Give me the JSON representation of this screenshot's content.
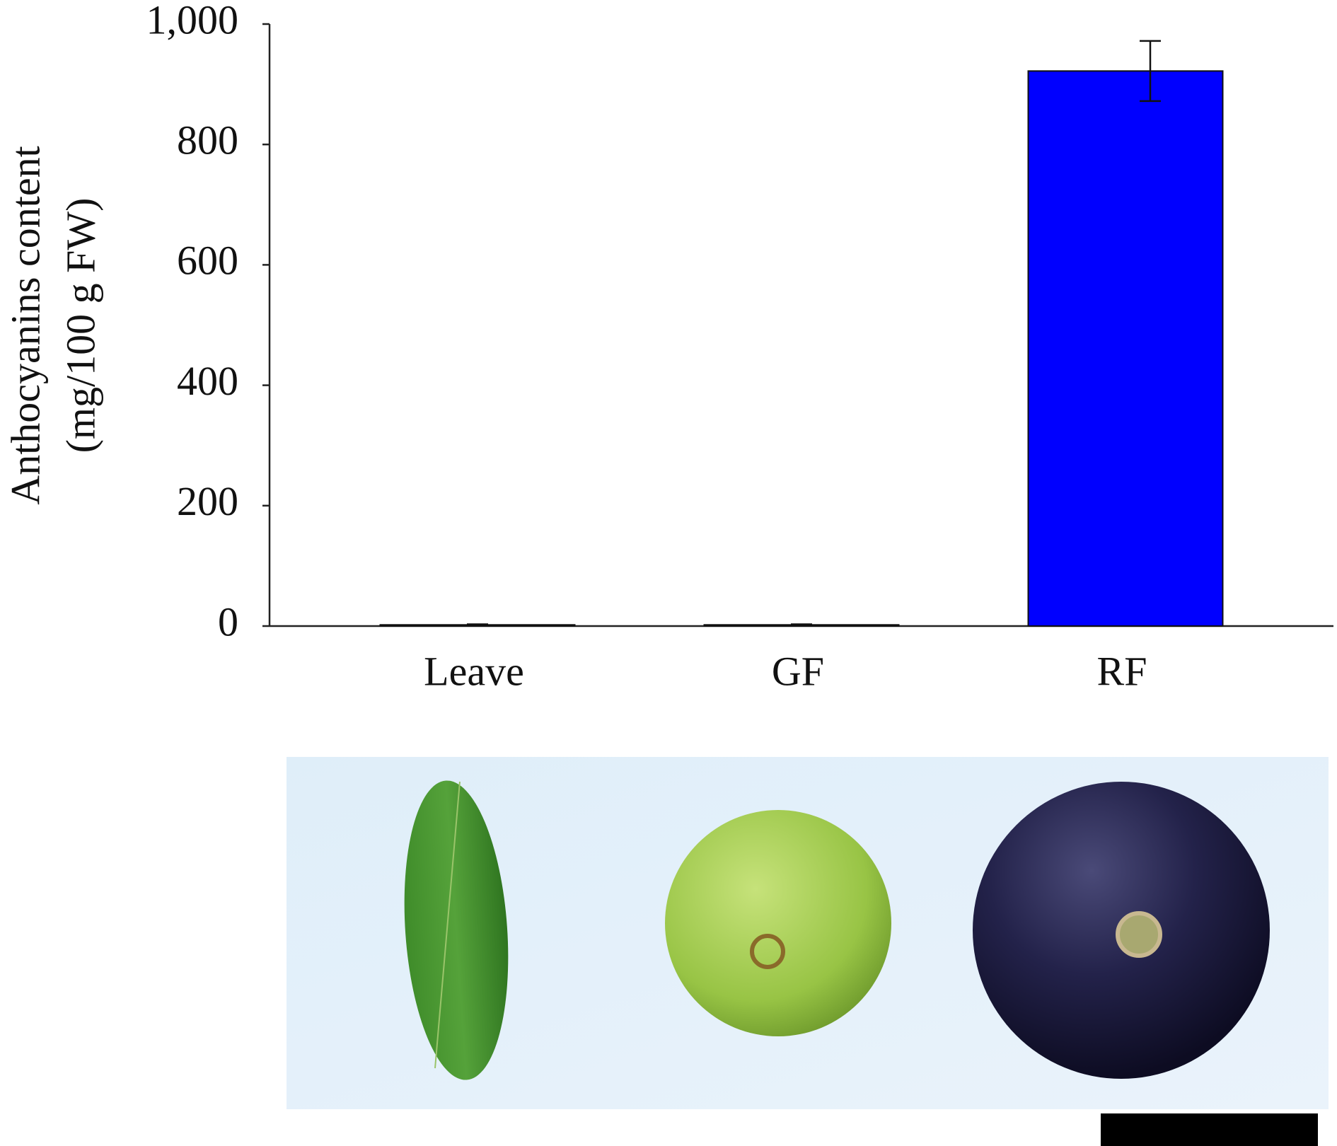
{
  "chart_data": {
    "type": "bar",
    "ylabel": [
      "Anthocyanins content",
      "(mg/100 g FW)"
    ],
    "categories": [
      "Leave",
      "GF",
      "RF"
    ],
    "values": [
      2,
      2,
      922
    ],
    "errors": [
      1,
      1,
      50
    ],
    "color": "#0000ff",
    "ylim": [
      0,
      1000
    ],
    "yticks": [
      0,
      200,
      400,
      600,
      800,
      {
        "value": 1000,
        "label": "1,000"
      }
    ]
  }
}
